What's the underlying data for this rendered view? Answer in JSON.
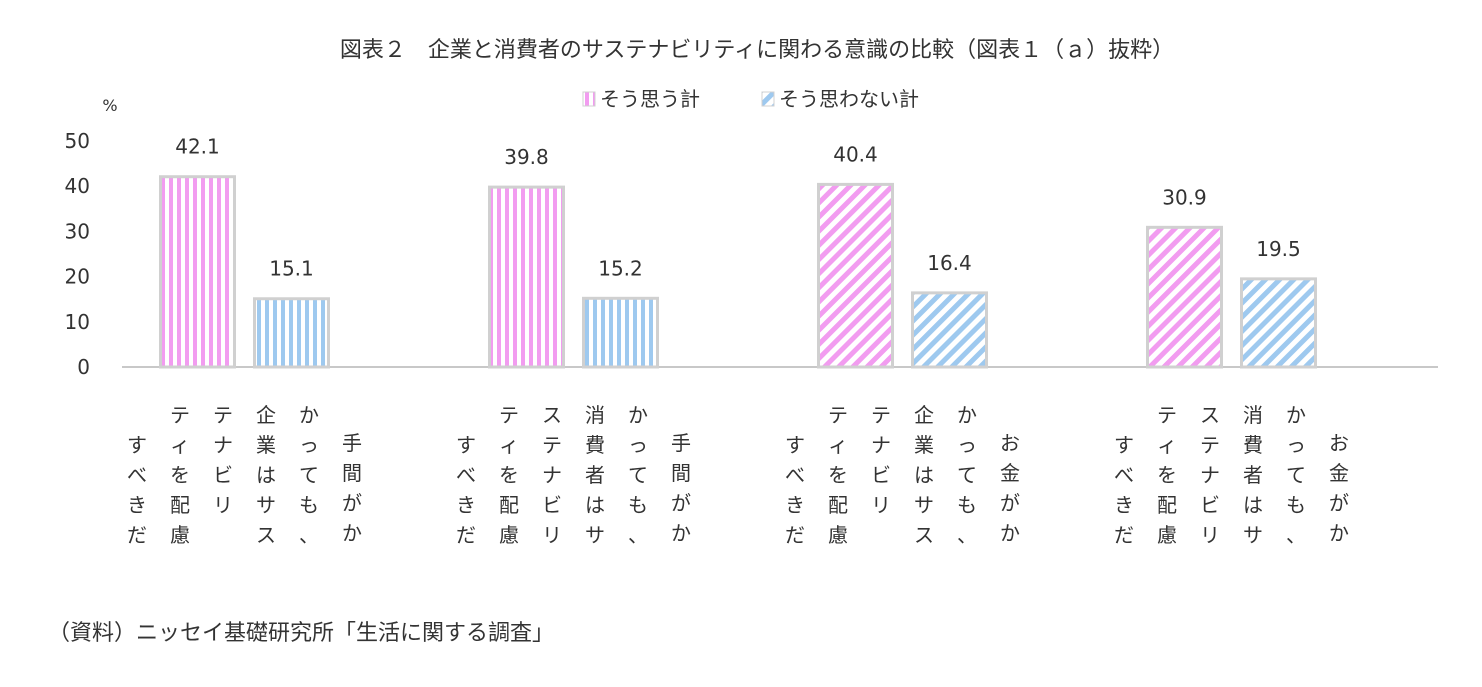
{
  "chart_data": {
    "type": "bar",
    "title": "図表２　企業と消費者のサステナビリティに関わる意識の比較（図表１（ａ）抜粋）",
    "ylabel": "%",
    "ylim": [
      0,
      50
    ],
    "yticks": [
      0,
      10,
      20,
      30,
      40,
      50
    ],
    "grid": false,
    "legend_position": "top-center",
    "categories": [
      "手間がかかっても、企業はサステナビリティを配慮すべきだ",
      "手間がかかっても、消費者はサステナビリティを配慮すべきだ",
      "お金がかかっても、企業はサステナビリティを配慮すべきだ",
      "お金がかかっても、消費者はサステナビリティを配慮すべきだ"
    ],
    "category_label_columns": [
      [
        "手間がか",
        "かっても、",
        "企業はサス",
        "テナビリ",
        "ティを配慮",
        "すべきだ"
      ],
      [
        "手間がか",
        "かっても、",
        "消費者はサ",
        "ステナビリ",
        "ティを配慮",
        "すべきだ"
      ],
      [
        "お金がか",
        "かっても、",
        "企業はサス",
        "テナビリ",
        "ティを配慮",
        "すべきだ"
      ],
      [
        "お金がか",
        "かっても、",
        "消費者はサ",
        "ステナビリ",
        "ティを配慮",
        "すべきだ"
      ]
    ],
    "series": [
      {
        "name": "そう思う計",
        "values": [
          42.1,
          39.8,
          40.4,
          30.9
        ],
        "color": "#f29cf0",
        "patterns": [
          "vertical",
          "vertical",
          "diagonal",
          "diagonal"
        ]
      },
      {
        "name": "そう思わない計",
        "values": [
          15.1,
          15.2,
          16.4,
          19.5
        ],
        "color": "#9ec9ef",
        "patterns": [
          "vertical",
          "vertical",
          "diagonal",
          "diagonal"
        ]
      }
    ],
    "bar_border_color": "#d0d0d0",
    "axis_color": "#c8c8c8"
  },
  "source_note": "（資料）ニッセイ基礎研究所「生活に関する調査」"
}
